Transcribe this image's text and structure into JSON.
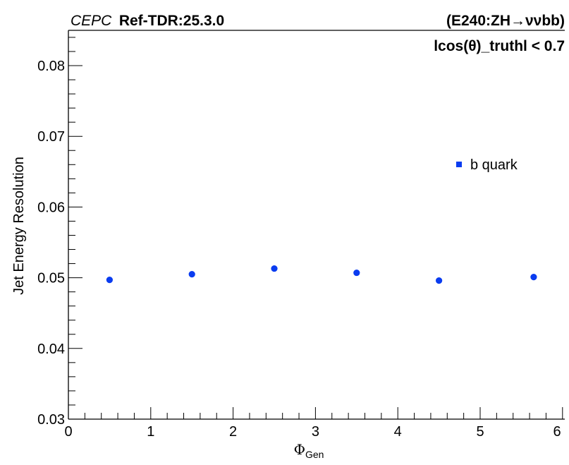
{
  "chart_data": {
    "type": "scatter",
    "title_italic": "CEPC",
    "title_bold": "Ref-TDR:25.3.0",
    "process_label": "(E240:ZH→ννbb)",
    "cut_label": "lcos(θ)_truthl < 0.7",
    "xlabel_symbol": "Φ",
    "xlabel_subscript": "Gen",
    "ylabel": "Jet Energy Resolution",
    "xlim": [
      0,
      6
    ],
    "ylim": [
      0.03,
      0.085
    ],
    "x_ticks": [
      "0",
      "1",
      "2",
      "3",
      "4",
      "5",
      "6"
    ],
    "y_ticks": [
      "0.03",
      "0.04",
      "0.05",
      "0.06",
      "0.07",
      "0.08"
    ],
    "grid": false,
    "legend_position": "right",
    "series": [
      {
        "name": "b quark",
        "color": "#0a3cf0",
        "x": [
          0.5,
          1.5,
          2.5,
          3.5,
          4.5,
          5.65
        ],
        "y": [
          0.0497,
          0.0505,
          0.0513,
          0.0507,
          0.0496,
          0.0501
        ]
      }
    ]
  }
}
